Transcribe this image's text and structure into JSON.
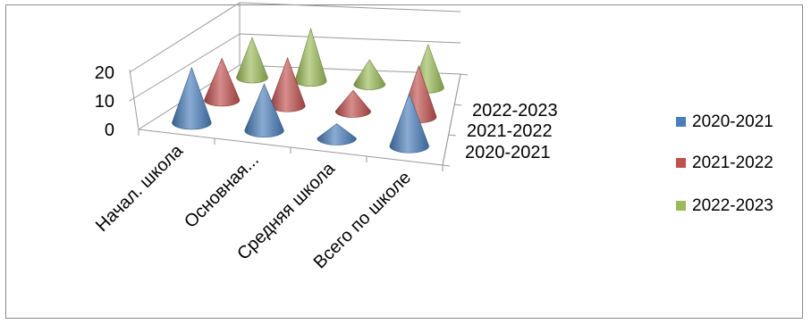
{
  "chart_data": {
    "type": "bar",
    "subtype": "3d-cone",
    "title": "",
    "xlabel": "",
    "ylabel": "",
    "categories": [
      "Начал. школа",
      "Основная...",
      "Средняя школа",
      "Всего по школе"
    ],
    "series": [
      {
        "name": "2020-2021",
        "color": "#4a7ebb",
        "values": [
          19,
          16,
          5,
          18
        ]
      },
      {
        "name": "2021-2022",
        "color": "#c0504d",
        "values": [
          14,
          16,
          7,
          17
        ]
      },
      {
        "name": "2022-2023",
        "color": "#9bbb59",
        "values": [
          13,
          17,
          8,
          14
        ]
      }
    ],
    "y_ticks": [
      "0",
      "10",
      "20"
    ],
    "ylim": [
      0,
      20
    ],
    "depth_labels": [
      "2022-2023",
      "2021-2022",
      "2020-2021"
    ],
    "grid": true,
    "legend_position": "right"
  }
}
